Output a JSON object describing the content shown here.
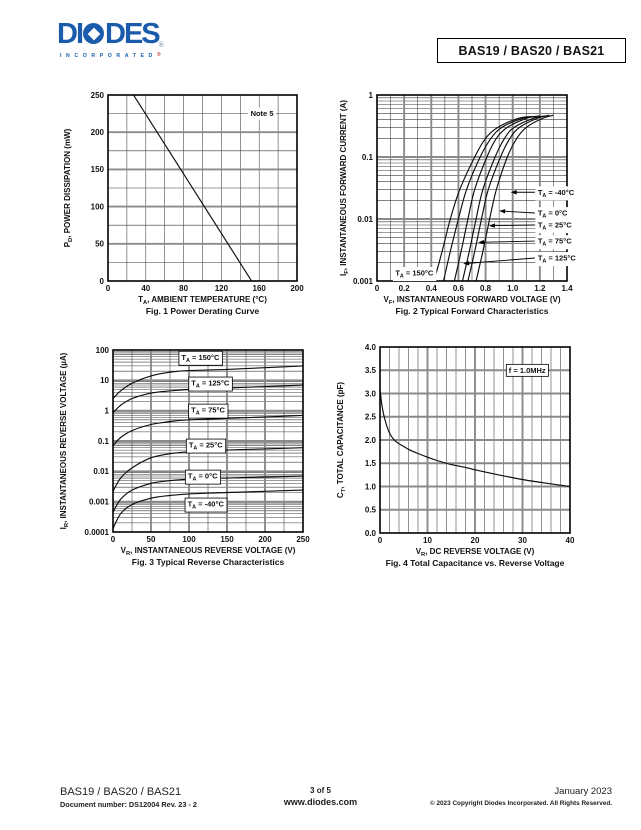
{
  "header": {
    "logo": {
      "word": "DIODES",
      "word_left": "DI",
      "word_right": "DES",
      "sub": "INCORPORATED",
      "reg": "®",
      "color": "#1a5cab",
      "reg_color": "#c03a2b"
    },
    "part_box": "BAS19 / BAS20 / BAS21"
  },
  "footer": {
    "left_line1": "BAS19 / BAS20 / BAS21",
    "left_line2": "Document number: DS12004 Rev. 23 - 2",
    "center_line1": "3 of 5",
    "center_line2": "www.diodes.com",
    "right_line1": "January 2023",
    "right_line2": "© 2023 Copyright Diodes Incorporated. All Rights Reserved."
  },
  "chart_data": [
    {
      "id": "fig1",
      "type": "line",
      "title": "Fig. 1  Power Derating Curve",
      "xlabel": {
        "pre": "T",
        "sub": "A",
        "post": ", AMBIENT TEMPERATURE (°C)"
      },
      "ylabel": {
        "pre": "P",
        "sub": "D",
        "post": ", POWER DISSIPATION (mW)"
      },
      "x": {
        "scale": "linear",
        "min": 0,
        "max": 200,
        "minor_step": 20,
        "ticks": [
          0,
          40,
          80,
          120,
          160,
          200
        ],
        "labels": [
          "0",
          "40",
          "80",
          "120",
          "160",
          "200"
        ],
        "major_thick": false
      },
      "y": {
        "scale": "linear",
        "min": 0,
        "max": 250,
        "minor_step": 25,
        "ticks": [
          0,
          50,
          100,
          150,
          200,
          250
        ],
        "labels": [
          "0",
          "50",
          "100",
          "150",
          "200",
          "250"
        ],
        "major_thick": true
      },
      "grid": true,
      "series": [
        {
          "name": "power-derating",
          "points": [
            [
              27,
              250
            ],
            [
              152,
              0
            ]
          ]
        }
      ],
      "annotations": [
        {
          "text": {
            "pre": "Note 5",
            "sub": "",
            "post": ""
          },
          "x": 163,
          "y": 225,
          "style": "plain"
        }
      ]
    },
    {
      "id": "fig2",
      "type": "line",
      "title": "Fig. 2  Typical Forward Characteristics",
      "xlabel": {
        "pre": "V",
        "sub": "F",
        "post": ", INSTANTANEOUS FORWARD VOLTAGE (V)"
      },
      "ylabel": {
        "pre": "I",
        "sub": "F",
        "post": ", INSTANTANEOUS FORWARD CURRENT (A)"
      },
      "x": {
        "scale": "linear",
        "min": 0,
        "max": 1.4,
        "minor_step": 0.1,
        "ticks": [
          0,
          0.2,
          0.4,
          0.6,
          0.8,
          1.0,
          1.2,
          1.4
        ],
        "labels": [
          "0",
          "0.2",
          "0.4",
          "0.6",
          "0.8",
          "1.0",
          "1.2",
          "1.4"
        ],
        "major_thick": true
      },
      "y": {
        "scale": "log",
        "min": 0.001,
        "max": 1,
        "ticks": [
          0.001,
          0.01,
          0.1,
          1
        ],
        "labels": [
          "0.001",
          "0.01",
          "0.1",
          "1"
        ],
        "major_thick": true
      },
      "grid": true,
      "series": [
        {
          "name": "TA = 150°C",
          "points": [
            [
              0.42,
              0.001
            ],
            [
              0.48,
              0.003
            ],
            [
              0.54,
              0.01
            ],
            [
              0.61,
              0.03
            ],
            [
              0.72,
              0.1
            ],
            [
              0.8,
              0.2
            ],
            [
              0.89,
              0.3
            ],
            [
              1.04,
              0.42
            ],
            [
              1.14,
              0.45
            ]
          ]
        },
        {
          "name": "TA = 125°C",
          "points": [
            [
              0.49,
              0.001
            ],
            [
              0.54,
              0.003
            ],
            [
              0.6,
              0.01
            ],
            [
              0.66,
              0.03
            ],
            [
              0.76,
              0.1
            ],
            [
              0.84,
              0.2
            ],
            [
              0.92,
              0.3
            ],
            [
              1.07,
              0.42
            ],
            [
              1.17,
              0.45
            ]
          ]
        },
        {
          "name": "TA = 75°C",
          "points": [
            [
              0.57,
              0.001
            ],
            [
              0.62,
              0.003
            ],
            [
              0.67,
              0.01
            ],
            [
              0.72,
              0.03
            ],
            [
              0.81,
              0.1
            ],
            [
              0.88,
              0.2
            ],
            [
              0.96,
              0.3
            ],
            [
              1.1,
              0.42
            ],
            [
              1.2,
              0.46
            ]
          ]
        },
        {
          "name": "TA = 25°C",
          "points": [
            [
              0.63,
              0.001
            ],
            [
              0.68,
              0.003
            ],
            [
              0.73,
              0.01
            ],
            [
              0.78,
              0.03
            ],
            [
              0.87,
              0.1
            ],
            [
              0.94,
              0.2
            ],
            [
              1.01,
              0.3
            ],
            [
              1.15,
              0.42
            ],
            [
              1.24,
              0.46
            ]
          ]
        },
        {
          "name": "TA = 0°C",
          "points": [
            [
              0.67,
              0.001
            ],
            [
              0.72,
              0.003
            ],
            [
              0.77,
              0.01
            ],
            [
              0.82,
              0.03
            ],
            [
              0.91,
              0.1
            ],
            [
              0.98,
              0.2
            ],
            [
              1.05,
              0.3
            ],
            [
              1.18,
              0.42
            ],
            [
              1.27,
              0.47
            ]
          ]
        },
        {
          "name": "TA = -40°C",
          "points": [
            [
              0.73,
              0.001
            ],
            [
              0.78,
              0.003
            ],
            [
              0.83,
              0.01
            ],
            [
              0.88,
              0.03
            ],
            [
              0.96,
              0.1
            ],
            [
              1.03,
              0.2
            ],
            [
              1.1,
              0.3
            ],
            [
              1.22,
              0.42
            ],
            [
              1.3,
              0.47
            ]
          ]
        }
      ],
      "annotations": [
        {
          "text": {
            "pre": "T",
            "sub": "A",
            "post": " = -40°C"
          },
          "x": 1.185,
          "y": 0.027,
          "style": "plain",
          "anchor": "start",
          "arrow": [
            0.985,
            0.027
          ]
        },
        {
          "text": {
            "pre": "T",
            "sub": "A",
            "post": " = 0°C"
          },
          "x": 1.185,
          "y": 0.0125,
          "style": "plain",
          "anchor": "start",
          "arrow": [
            0.9,
            0.0135
          ]
        },
        {
          "text": {
            "pre": "T",
            "sub": "A",
            "post": " = 25°C"
          },
          "x": 1.185,
          "y": 0.008,
          "style": "plain",
          "anchor": "start",
          "arrow": [
            0.825,
            0.0078
          ]
        },
        {
          "text": {
            "pre": "T",
            "sub": "A",
            "post": " = 75°C"
          },
          "x": 1.185,
          "y": 0.0044,
          "style": "plain",
          "anchor": "start",
          "arrow": [
            0.745,
            0.0042
          ]
        },
        {
          "text": {
            "pre": "T",
            "sub": "A",
            "post": " = 125°C"
          },
          "x": 1.185,
          "y": 0.00235,
          "style": "plain",
          "anchor": "start",
          "arrow": [
            0.635,
            0.0019
          ]
        },
        {
          "text": {
            "pre": "T",
            "sub": "A",
            "post": " = 150°C"
          },
          "x": 0.275,
          "y": 0.00135,
          "style": "plain"
        }
      ]
    },
    {
      "id": "fig3",
      "type": "line",
      "title": "Fig. 3  Typical Reverse Characteristics",
      "xlabel": {
        "pre": "V",
        "sub": "R",
        "post": ", INSTANTANEOUS REVERSE VOLTAGE (V)"
      },
      "ylabel": {
        "pre": "I",
        "sub": "R",
        "post": ", INSTANTANEOUS REVERSE VOLTAGE (µA)"
      },
      "x": {
        "scale": "linear",
        "min": 0,
        "max": 250,
        "minor_step": 25,
        "ticks": [
          0,
          50,
          100,
          150,
          200,
          250
        ],
        "labels": [
          "0",
          "50",
          "100",
          "150",
          "200",
          "250"
        ],
        "major_thick": true
      },
      "y": {
        "scale": "log",
        "min": 0.0001,
        "max": 100,
        "ticks": [
          0.0001,
          0.001,
          0.01,
          0.1,
          1,
          10,
          100
        ],
        "labels": [
          "0.0001",
          "0.001",
          "0.01",
          "0.1",
          "1",
          "10",
          "100"
        ],
        "major_thick": true
      },
      "grid": true,
      "series": [
        {
          "name": "TA = 150°C",
          "points": [
            [
              0,
              2.5
            ],
            [
              10,
              4.5
            ],
            [
              25,
              8
            ],
            [
              50,
              14
            ],
            [
              75,
              18.5
            ],
            [
              100,
              21
            ],
            [
              150,
              23
            ],
            [
              200,
              26
            ],
            [
              250,
              30
            ]
          ]
        },
        {
          "name": "TA = 125°C",
          "points": [
            [
              0,
              0.85
            ],
            [
              10,
              1.5
            ],
            [
              25,
              2.5
            ],
            [
              50,
              3.8
            ],
            [
              75,
              4.5
            ],
            [
              100,
              5
            ],
            [
              150,
              5.6
            ],
            [
              200,
              6.2
            ],
            [
              250,
              7
            ]
          ]
        },
        {
          "name": "TA = 75°C",
          "points": [
            [
              0,
              0.07
            ],
            [
              10,
              0.13
            ],
            [
              25,
              0.22
            ],
            [
              50,
              0.35
            ],
            [
              75,
              0.44
            ],
            [
              100,
              0.5
            ],
            [
              150,
              0.56
            ],
            [
              200,
              0.62
            ],
            [
              250,
              0.7
            ]
          ]
        },
        {
          "name": "TA = 25°C",
          "points": [
            [
              0,
              0.0022
            ],
            [
              10,
              0.006
            ],
            [
              25,
              0.013
            ],
            [
              50,
              0.028
            ],
            [
              75,
              0.038
            ],
            [
              100,
              0.044
            ],
            [
              150,
              0.05
            ],
            [
              200,
              0.055
            ],
            [
              250,
              0.06
            ]
          ]
        },
        {
          "name": "TA = 0°C",
          "points": [
            [
              0,
              0.00045
            ],
            [
              10,
              0.0012
            ],
            [
              25,
              0.0024
            ],
            [
              50,
              0.004
            ],
            [
              75,
              0.0049
            ],
            [
              100,
              0.0055
            ],
            [
              150,
              0.006
            ],
            [
              200,
              0.0065
            ],
            [
              250,
              0.007
            ]
          ]
        },
        {
          "name": "TA = -40°C",
          "points": [
            [
              0,
              0.00013
            ],
            [
              10,
              0.0004
            ],
            [
              25,
              0.0008
            ],
            [
              50,
              0.0013
            ],
            [
              75,
              0.0016
            ],
            [
              100,
              0.0018
            ],
            [
              150,
              0.002
            ],
            [
              200,
              0.0022
            ],
            [
              250,
              0.0024
            ]
          ]
        }
      ],
      "annotations": [
        {
          "text": {
            "pre": "T",
            "sub": "A",
            "post": " = 150°C"
          },
          "x": 115,
          "y": 58,
          "style": "box"
        },
        {
          "text": {
            "pre": "T",
            "sub": "A",
            "post": " = 125°C"
          },
          "x": 128,
          "y": 8.2,
          "style": "box"
        },
        {
          "text": {
            "pre": "T",
            "sub": "A",
            "post": " = 75°C"
          },
          "x": 125,
          "y": 1.05,
          "style": "box"
        },
        {
          "text": {
            "pre": "T",
            "sub": "A",
            "post": " = 25°C"
          },
          "x": 122,
          "y": 0.074,
          "style": "box"
        },
        {
          "text": {
            "pre": "T",
            "sub": "A",
            "post": " = 0°C"
          },
          "x": 118,
          "y": 0.007,
          "style": "box"
        },
        {
          "text": {
            "pre": "T",
            "sub": "A",
            "post": " = -40°C"
          },
          "x": 122,
          "y": 0.00084,
          "style": "box"
        }
      ]
    },
    {
      "id": "fig4",
      "type": "line",
      "title": "Fig. 4  Total Capacitance vs. Reverse Voltage",
      "xlabel": {
        "pre": "V",
        "sub": "R",
        "post": ", DC REVERSE VOLTAGE (V)"
      },
      "ylabel": {
        "pre": "C",
        "sub": "T",
        "post": ", TOTAL CAPACITANCE (pF)"
      },
      "x": {
        "scale": "linear",
        "min": 0,
        "max": 40,
        "minor_step": 2,
        "ticks": [
          0,
          10,
          20,
          30,
          40
        ],
        "labels": [
          "0",
          "10",
          "20",
          "30",
          "40"
        ],
        "major_thick": true
      },
      "y": {
        "scale": "linear",
        "min": 0,
        "max": 4,
        "minor_step": 0.5,
        "ticks": [
          0,
          0.5,
          1,
          1.5,
          2,
          2.5,
          3,
          3.5,
          4
        ],
        "labels": [
          "0.0",
          "0.5",
          "1.0",
          "1.5",
          "2.0",
          "2.5",
          "3.0",
          "3.5",
          "4.0"
        ],
        "major_thick": true
      },
      "grid": true,
      "series": [
        {
          "name": "total-capacitance",
          "points": [
            [
              0,
              3.1
            ],
            [
              0.4,
              2.75
            ],
            [
              1,
              2.45
            ],
            [
              2,
              2.15
            ],
            [
              3,
              2.0
            ],
            [
              4,
              1.92
            ],
            [
              5,
              1.86
            ],
            [
              6,
              1.8
            ],
            [
              8,
              1.71
            ],
            [
              10,
              1.63
            ],
            [
              12,
              1.56
            ],
            [
              15,
              1.47
            ],
            [
              18,
              1.41
            ],
            [
              20,
              1.36
            ],
            [
              25,
              1.25
            ],
            [
              30,
              1.15
            ],
            [
              35,
              1.07
            ],
            [
              40,
              1.0
            ]
          ]
        }
      ],
      "annotations": [
        {
          "text": {
            "pre": "f = 1.0MHz",
            "sub": "",
            "post": ""
          },
          "x": 31,
          "y": 3.5,
          "style": "box"
        }
      ]
    }
  ]
}
